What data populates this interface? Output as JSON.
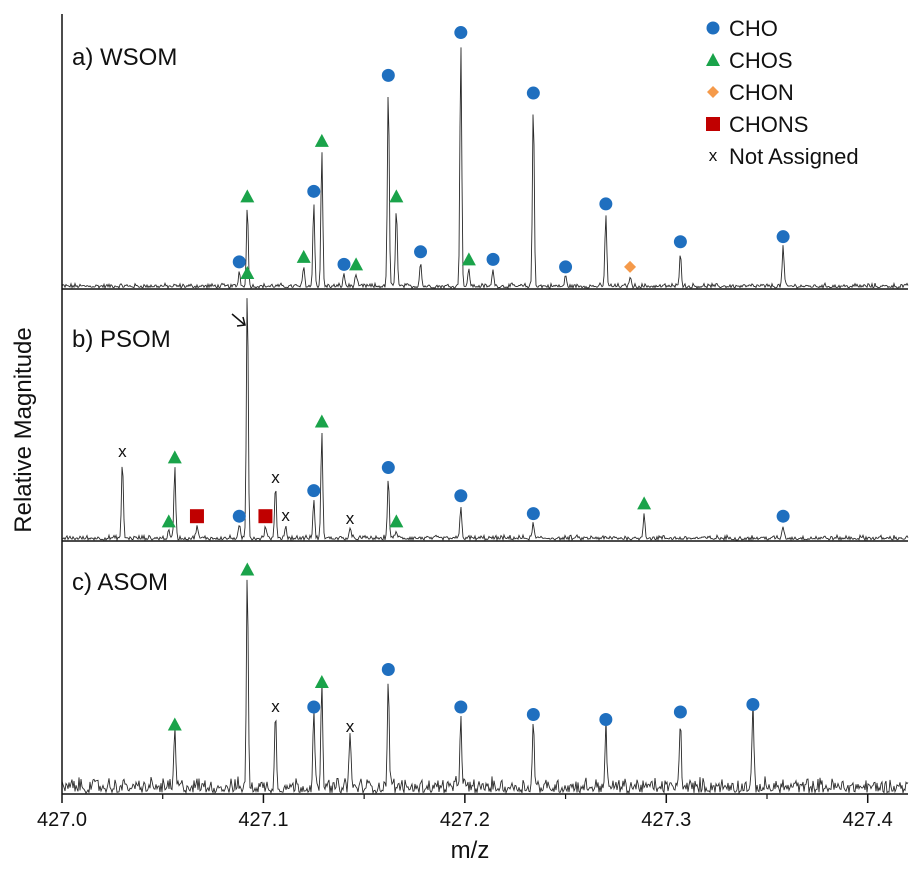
{
  "chart_data": {
    "type": "line",
    "title": "",
    "xlabel": "m/z",
    "ylabel": "Relative Magnitude",
    "xlim": [
      427.0,
      427.42
    ],
    "x_ticks": [
      "427.0",
      "427.1",
      "427.2",
      "427.3",
      "427.4"
    ],
    "legend": {
      "placement": "top-right",
      "entries": [
        {
          "label": "CHO",
          "marker": "circle",
          "color": "#1f6fbf"
        },
        {
          "label": "CHOS",
          "marker": "triangle",
          "color": "#1aa34a"
        },
        {
          "label": "CHON",
          "marker": "diamond",
          "color": "#f59a4a"
        },
        {
          "label": "CHONS",
          "marker": "square",
          "color": "#c00000"
        },
        {
          "label": "Not Assigned",
          "marker": "x",
          "color": "#111111"
        }
      ]
    },
    "panels": [
      {
        "label": "a) WSOM",
        "noise": 0.015,
        "peaks": [
          {
            "x": 427.088,
            "y": 0.06,
            "class": "CHO"
          },
          {
            "x": 427.092,
            "y": 0.32,
            "class": "CHOS"
          },
          {
            "x": 427.12,
            "y": 0.08,
            "class": "CHOS"
          },
          {
            "x": 427.125,
            "y": 0.34,
            "class": "CHO"
          },
          {
            "x": 427.129,
            "y": 0.54,
            "class": "CHOS"
          },
          {
            "x": 427.14,
            "y": 0.05,
            "class": "CHO"
          },
          {
            "x": 427.146,
            "y": 0.05,
            "class": "CHOS"
          },
          {
            "x": 427.162,
            "y": 0.8,
            "class": "CHO"
          },
          {
            "x": 427.166,
            "y": 0.32,
            "class": "CHOS"
          },
          {
            "x": 427.178,
            "y": 0.1,
            "class": "CHO"
          },
          {
            "x": 427.198,
            "y": 0.97,
            "class": "CHO"
          },
          {
            "x": 427.202,
            "y": 0.07,
            "class": "CHOS"
          },
          {
            "x": 427.214,
            "y": 0.07,
            "class": "CHO"
          },
          {
            "x": 427.234,
            "y": 0.73,
            "class": "CHO"
          },
          {
            "x": 427.25,
            "y": 0.04,
            "class": "CHO"
          },
          {
            "x": 427.27,
            "y": 0.29,
            "class": "CHO"
          },
          {
            "x": 427.282,
            "y": 0.04,
            "class": "CHON"
          },
          {
            "x": 427.307,
            "y": 0.14,
            "class": "CHO"
          },
          {
            "x": 427.358,
            "y": 0.16,
            "class": "CHO"
          }
        ]
      },
      {
        "label": "b) PSOM",
        "noise": 0.015,
        "peaks": [
          {
            "x": 427.03,
            "y": 0.3,
            "class": "Not Assigned"
          },
          {
            "x": 427.053,
            "y": 0.03,
            "class": "CHOS"
          },
          {
            "x": 427.056,
            "y": 0.28,
            "class": "CHOS"
          },
          {
            "x": 427.067,
            "y": 0.05,
            "class": "CHONS"
          },
          {
            "x": 427.088,
            "y": 0.05,
            "class": "CHO"
          },
          {
            "x": 427.092,
            "y": 1.0,
            "class": "CHOS"
          },
          {
            "x": 427.101,
            "y": 0.05,
            "class": "CHONS"
          },
          {
            "x": 427.106,
            "y": 0.2,
            "class": "Not Assigned"
          },
          {
            "x": 427.111,
            "y": 0.05,
            "class": "Not Assigned"
          },
          {
            "x": 427.125,
            "y": 0.15,
            "class": "CHO"
          },
          {
            "x": 427.129,
            "y": 0.42,
            "class": "CHOS"
          },
          {
            "x": 427.143,
            "y": 0.04,
            "class": "Not Assigned"
          },
          {
            "x": 427.162,
            "y": 0.24,
            "class": "CHO"
          },
          {
            "x": 427.166,
            "y": 0.03,
            "class": "CHOS"
          },
          {
            "x": 427.198,
            "y": 0.13,
            "class": "CHO"
          },
          {
            "x": 427.234,
            "y": 0.06,
            "class": "CHO"
          },
          {
            "x": 427.289,
            "y": 0.1,
            "class": "CHOS"
          },
          {
            "x": 427.358,
            "y": 0.05,
            "class": "CHO"
          }
        ]
      },
      {
        "label": "c) ASOM",
        "noise": 0.05,
        "peaks": [
          {
            "x": 427.056,
            "y": 0.23,
            "class": "CHOS"
          },
          {
            "x": 427.092,
            "y": 0.85,
            "class": "CHOS"
          },
          {
            "x": 427.106,
            "y": 0.3,
            "class": "Not Assigned"
          },
          {
            "x": 427.125,
            "y": 0.3,
            "class": "CHO"
          },
          {
            "x": 427.129,
            "y": 0.4,
            "class": "CHOS"
          },
          {
            "x": 427.143,
            "y": 0.22,
            "class": "Not Assigned"
          },
          {
            "x": 427.162,
            "y": 0.45,
            "class": "CHO"
          },
          {
            "x": 427.198,
            "y": 0.3,
            "class": "CHO"
          },
          {
            "x": 427.234,
            "y": 0.27,
            "class": "CHO"
          },
          {
            "x": 427.27,
            "y": 0.25,
            "class": "CHO"
          },
          {
            "x": 427.307,
            "y": 0.28,
            "class": "CHO"
          },
          {
            "x": 427.343,
            "y": 0.31,
            "class": "CHO"
          }
        ]
      }
    ]
  }
}
